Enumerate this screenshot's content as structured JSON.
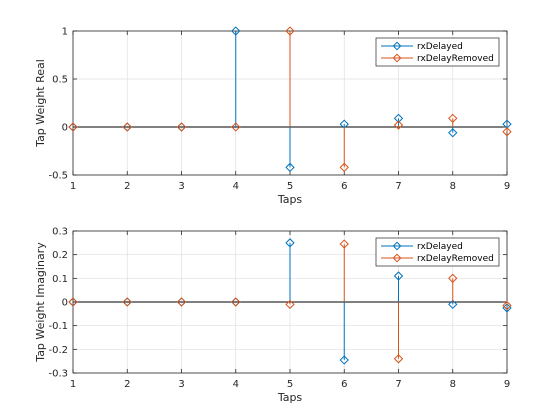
{
  "chart_data": [
    {
      "type": "stem",
      "xlabel": "Taps",
      "ylabel": "Tap Weight Real",
      "xlim": [
        1,
        9
      ],
      "ylim": [
        -0.5,
        1
      ],
      "xticks": [
        "1",
        "2",
        "3",
        "4",
        "5",
        "6",
        "7",
        "8",
        "9"
      ],
      "yticks": [
        "-0.5",
        "0",
        "0.5",
        "1"
      ],
      "grid": true,
      "legend_position": "top-right",
      "series": [
        {
          "name": "rxDelayed",
          "color": "#0072BD",
          "x": [
            1,
            2,
            3,
            4,
            5,
            6,
            7,
            8,
            9
          ],
          "values": [
            0.0,
            0.0,
            0.0,
            1.0,
            -0.42,
            0.03,
            0.09,
            -0.06,
            0.03
          ]
        },
        {
          "name": "rxDelayRemoved",
          "color": "#D95319",
          "x": [
            1,
            2,
            3,
            4,
            5,
            6,
            7,
            8,
            9
          ],
          "values": [
            0.0,
            0.0,
            0.0,
            0.0,
            1.0,
            -0.42,
            0.02,
            0.09,
            -0.05
          ]
        }
      ]
    },
    {
      "type": "stem",
      "xlabel": "Taps",
      "ylabel": "Tap Weight Imaginary",
      "xlim": [
        1,
        9
      ],
      "ylim": [
        -0.3,
        0.3
      ],
      "xticks": [
        "1",
        "2",
        "3",
        "4",
        "5",
        "6",
        "7",
        "8",
        "9"
      ],
      "yticks": [
        "-0.3",
        "-0.2",
        "-0.1",
        "0",
        "0.1",
        "0.2",
        "0.3"
      ],
      "grid": true,
      "legend_position": "top-right",
      "series": [
        {
          "name": "rxDelayed",
          "color": "#0072BD",
          "x": [
            1,
            2,
            3,
            4,
            5,
            6,
            7,
            8,
            9
          ],
          "values": [
            0.0,
            0.0,
            0.0,
            0.0,
            0.25,
            -0.245,
            0.11,
            -0.01,
            -0.025
          ]
        },
        {
          "name": "rxDelayRemoved",
          "color": "#D95319",
          "x": [
            1,
            2,
            3,
            4,
            5,
            6,
            7,
            8,
            9
          ],
          "values": [
            0.0,
            0.0,
            0.0,
            0.0,
            -0.01,
            0.245,
            -0.24,
            0.1,
            -0.015
          ]
        }
      ]
    }
  ]
}
